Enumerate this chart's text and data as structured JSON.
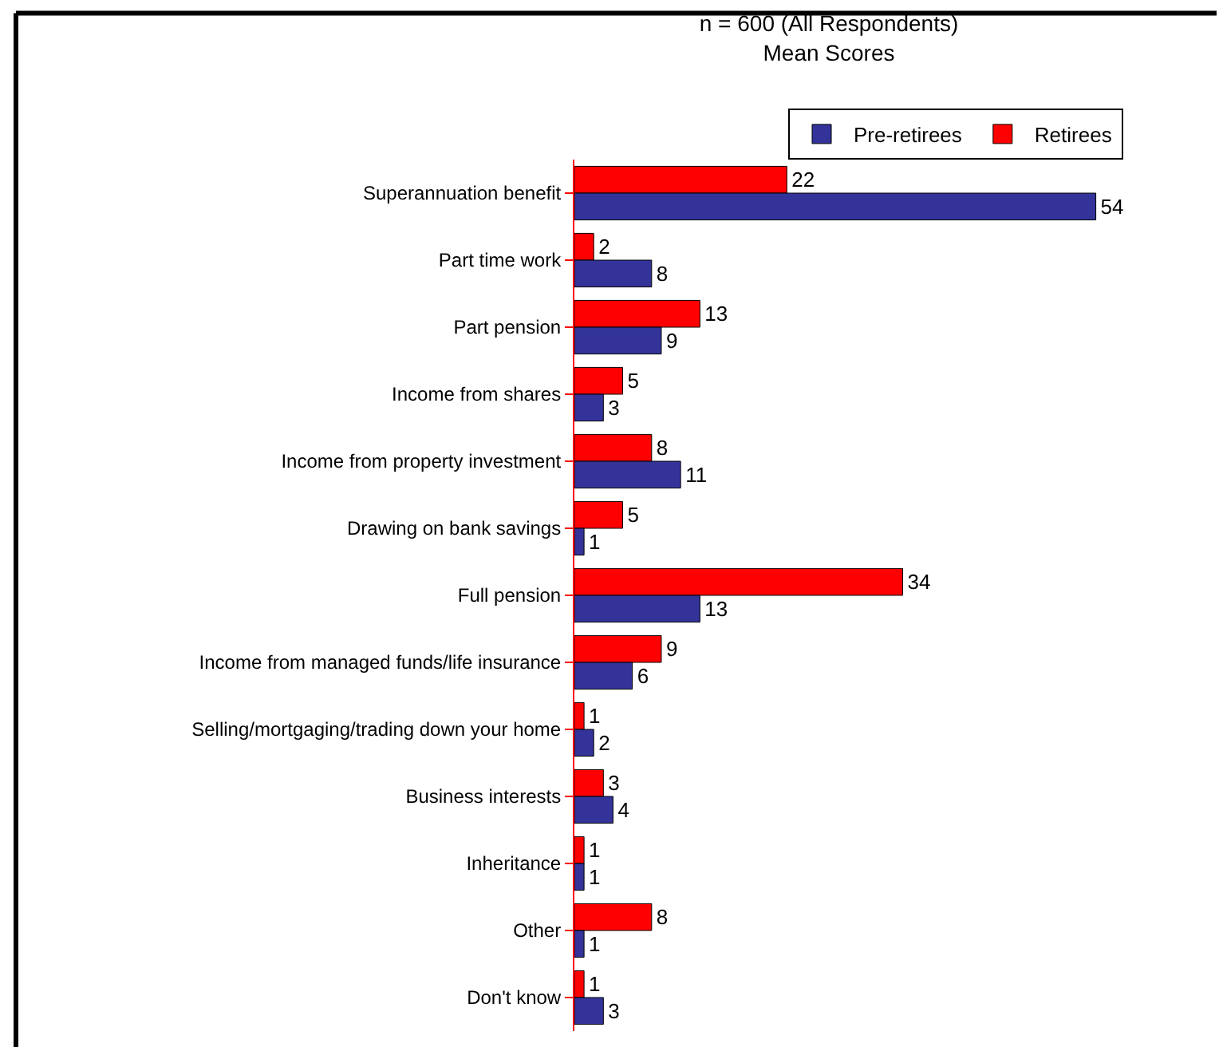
{
  "chart_data": {
    "type": "bar",
    "orientation": "horizontal",
    "title": "n = 600 (All Respondents)",
    "subtitle": "Mean Scores",
    "categories": [
      "Superannuation benefit",
      "Part time work",
      "Part pension",
      "Income from shares",
      "Income from property investment",
      "Drawing on bank savings",
      "Full pension",
      "Income from managed funds/life insurance",
      "Selling/mortgaging/trading down your home",
      "Business interests",
      "Inheritance",
      "Other",
      "Don't know"
    ],
    "series": [
      {
        "name": "Pre-retirees",
        "color": "#333399",
        "values": [
          54,
          8,
          9,
          3,
          11,
          1,
          13,
          6,
          2,
          4,
          1,
          1,
          3
        ]
      },
      {
        "name": "Retirees",
        "color": "#ff0000",
        "values": [
          22,
          2,
          13,
          5,
          8,
          5,
          34,
          9,
          1,
          3,
          1,
          8,
          1
        ]
      }
    ],
    "data_labels": true,
    "legend": "top right"
  }
}
